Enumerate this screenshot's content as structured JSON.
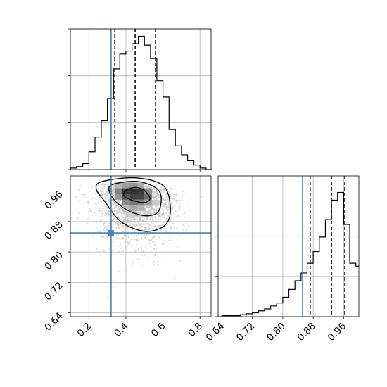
{
  "chart_data": [
    {
      "type": "histogram",
      "panel": "marginal x",
      "bin_edges": [
        0.1,
        0.133,
        0.167,
        0.2,
        0.233,
        0.267,
        0.3,
        0.333,
        0.367,
        0.4,
        0.433,
        0.467,
        0.5,
        0.533,
        0.567,
        0.6,
        0.633,
        0.667,
        0.7,
        0.733,
        0.767,
        0.8,
        0.833,
        0.867
      ],
      "counts": [
        1,
        2,
        4,
        12,
        22,
        33,
        48,
        68,
        78,
        80,
        85,
        90,
        84,
        75,
        60,
        49,
        27,
        16,
        10,
        6,
        3,
        1,
        0
      ],
      "quantiles": [
        0.34,
        0.45,
        0.56
      ],
      "truth": 0.32,
      "xlim": [
        0.1,
        0.86
      ],
      "ylim": [
        0,
        95
      ],
      "xticks": [
        0.2,
        0.4,
        0.6,
        0.8
      ],
      "show_tick_labels": false,
      "grid": true
    },
    {
      "type": "heatmap",
      "panel": "joint",
      "x_range": [
        0.1,
        0.86
      ],
      "y_range": [
        0.63,
        1.0
      ],
      "xticks": [
        0.2,
        0.4,
        0.6,
        0.8
      ],
      "xtick_labels": [
        "0.2",
        "0.4",
        "0.6",
        "0.8"
      ],
      "yticks": [
        0.64,
        0.72,
        0.8,
        0.88,
        0.96
      ],
      "ytick_labels": [
        "0.64",
        "0.72",
        "0.80",
        "0.88",
        "0.96"
      ],
      "density_peak": [
        0.45,
        0.953
      ],
      "contours": [
        [
          [
            0.45,
            0.97
          ],
          [
            0.5,
            0.962
          ],
          [
            0.53,
            0.94
          ],
          [
            0.5,
            0.93
          ],
          [
            0.44,
            0.935
          ],
          [
            0.39,
            0.947
          ],
          [
            0.4,
            0.962
          ]
        ],
        [
          [
            0.33,
            0.978
          ],
          [
            0.47,
            0.985
          ],
          [
            0.58,
            0.96
          ],
          [
            0.58,
            0.91
          ],
          [
            0.52,
            0.895
          ],
          [
            0.43,
            0.905
          ],
          [
            0.35,
            0.93
          ],
          [
            0.31,
            0.96
          ]
        ],
        [
          [
            0.27,
            0.985
          ],
          [
            0.45,
            0.995
          ],
          [
            0.6,
            0.975
          ],
          [
            0.64,
            0.92
          ],
          [
            0.62,
            0.875
          ],
          [
            0.54,
            0.855
          ],
          [
            0.45,
            0.86
          ],
          [
            0.36,
            0.885
          ],
          [
            0.29,
            0.93
          ],
          [
            0.24,
            0.965
          ]
        ]
      ],
      "truth": [
        0.32,
        0.85
      ],
      "grid": true
    },
    {
      "type": "histogram",
      "panel": "marginal y",
      "bin_edges": [
        0.64,
        0.656,
        0.672,
        0.688,
        0.704,
        0.72,
        0.736,
        0.752,
        0.768,
        0.784,
        0.8,
        0.816,
        0.832,
        0.848,
        0.864,
        0.88,
        0.896,
        0.912,
        0.928,
        0.944,
        0.96,
        0.976,
        0.992,
        1.0
      ],
      "counts": [
        1,
        1,
        1,
        2,
        3,
        4,
        6,
        8,
        11,
        14,
        20,
        28,
        37,
        45,
        55,
        67,
        82,
        100,
        120,
        128,
        95,
        55,
        52
      ],
      "quantiles": [
        0.872,
        0.928,
        0.963
      ],
      "truth": 0.852,
      "xlim": [
        0.63,
        1.0
      ],
      "ylim": [
        0,
        145
      ],
      "xticks": [
        0.64,
        0.72,
        0.8,
        0.88,
        0.96
      ],
      "xtick_labels": [
        "0.64",
        "0.72",
        "0.80",
        "0.88",
        "0.96"
      ],
      "grid": true
    }
  ]
}
